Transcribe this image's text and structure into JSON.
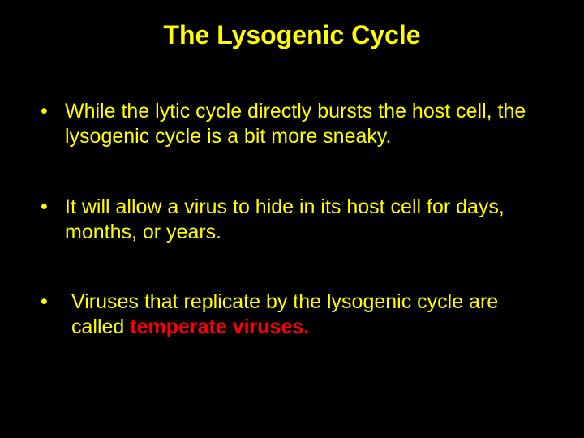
{
  "slide": {
    "title": "The Lysogenic Cycle",
    "title_color": "#ffff00",
    "title_fontsize": 32,
    "background_color": "#000000",
    "bullets": [
      {
        "text": "While the lytic cycle directly bursts the host cell, the lysogenic cycle is a bit more sneaky.",
        "color": "#ffff00",
        "fontsize": 25
      },
      {
        "text": "It will allow a virus to hide in its host cell for days, months, or years.",
        "color": "#ffff00",
        "fontsize": 25
      },
      {
        "text_prefix": " Viruses that replicate by the lysogenic cycle are called ",
        "highlight_text": "temperate viruses.",
        "color": "#ffff00",
        "highlight_color": "#ff0000",
        "fontsize": 25
      }
    ]
  }
}
